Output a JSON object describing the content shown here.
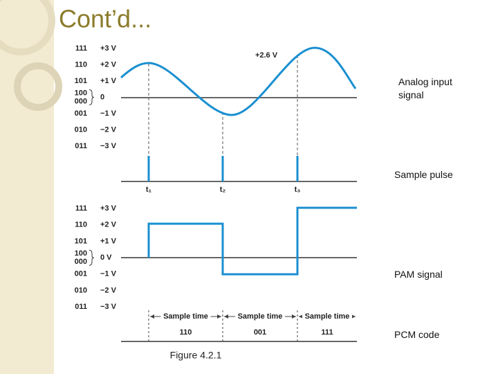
{
  "title": "Cont’d...",
  "analog": {
    "codes": [
      "111",
      "110",
      "101",
      "100",
      "000",
      "001",
      "010",
      "011"
    ],
    "levels": [
      "+3 V",
      "+2 V",
      "+1 V",
      "0",
      "−1 V",
      "−2 V",
      "−3 V"
    ],
    "peak_label": "+2.6 V",
    "label": "Analog input signal"
  },
  "sample": {
    "times": [
      "t₁",
      "t₂",
      "t₃"
    ],
    "label": "Sample pulse"
  },
  "pam": {
    "codes": [
      "111",
      "110",
      "101",
      "100",
      "000",
      "001",
      "010",
      "011"
    ],
    "levels": [
      "+3 V",
      "+2 V",
      "+1 V",
      "0 V",
      "−1 V",
      "−2 V",
      "−3 V"
    ],
    "label": "PAM signal"
  },
  "pcm": {
    "intervals": [
      "Sample time",
      "Sample time",
      "Sample time"
    ],
    "codes": [
      "110",
      "001",
      "111"
    ],
    "label": "PCM code"
  },
  "caption": "Figure 4.2.1"
}
